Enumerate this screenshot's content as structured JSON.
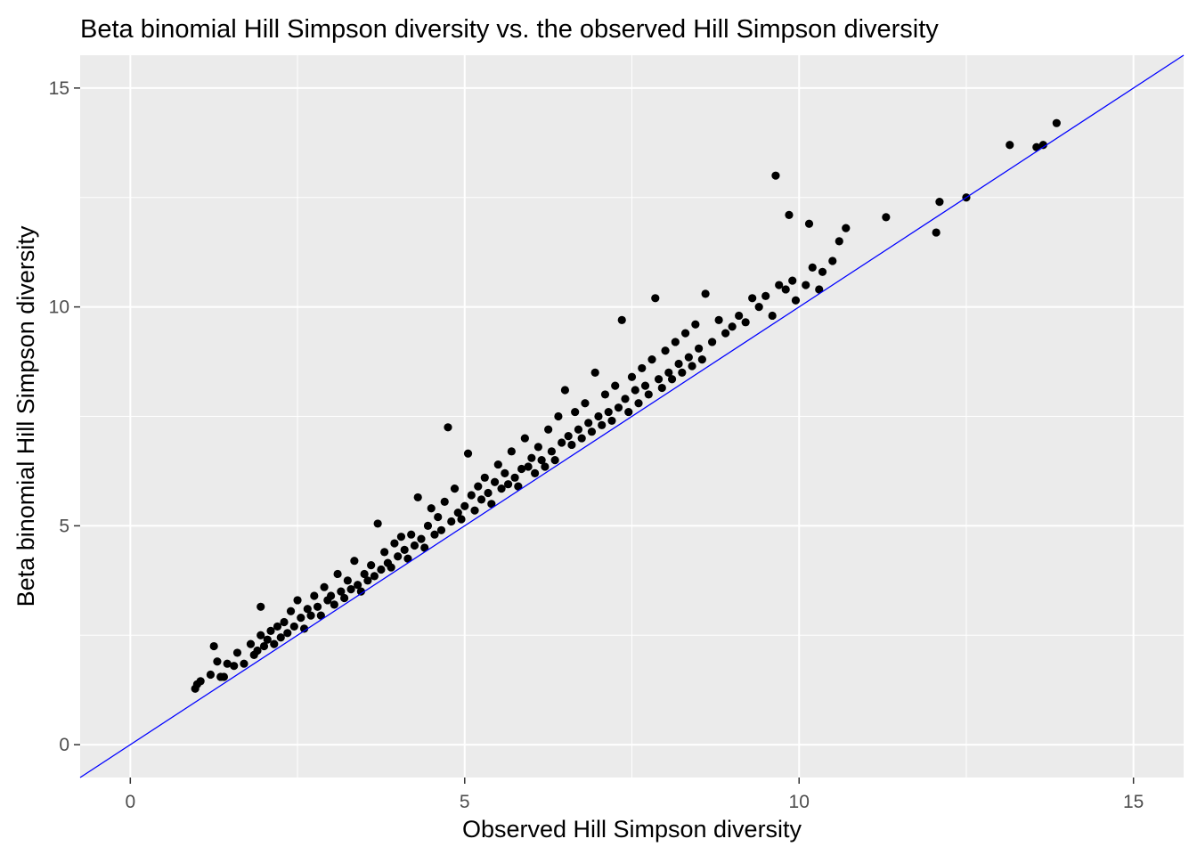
{
  "chart_data": {
    "type": "scatter",
    "title": "Beta binomial Hill Simpson diversity vs. the observed Hill Simpson diversity",
    "xlabel": "Observed Hill Simpson diversity",
    "ylabel": "Beta binomial Hill Simpson diversity",
    "xlim": [
      -0.75,
      15.75
    ],
    "ylim": [
      -0.75,
      15.75
    ],
    "xticks": [
      0,
      5,
      10,
      15
    ],
    "yticks": [
      0,
      5,
      10,
      15
    ],
    "xtick_labels": [
      "0",
      "5",
      "10",
      "15"
    ],
    "ytick_labels": [
      "0",
      "5",
      "10",
      "15"
    ],
    "grid": true,
    "reference_line": {
      "intercept": 0,
      "slope": 1,
      "color": "#0000ff"
    },
    "colors": {
      "panel": "#ebebeb",
      "grid": "#ffffff",
      "points": "#000000",
      "line": "#0000ff",
      "axis_text": "#4d4d4d"
    },
    "points": [
      [
        0.97,
        1.28
      ],
      [
        1.0,
        1.38
      ],
      [
        1.05,
        1.45
      ],
      [
        1.2,
        1.6
      ],
      [
        1.25,
        2.25
      ],
      [
        1.3,
        1.9
      ],
      [
        1.35,
        1.55
      ],
      [
        1.4,
        1.55
      ],
      [
        1.45,
        1.85
      ],
      [
        1.55,
        1.8
      ],
      [
        1.6,
        2.1
      ],
      [
        1.7,
        1.85
      ],
      [
        1.8,
        2.3
      ],
      [
        1.85,
        2.05
      ],
      [
        1.9,
        2.15
      ],
      [
        1.95,
        3.15
      ],
      [
        1.95,
        2.5
      ],
      [
        2.0,
        2.25
      ],
      [
        2.05,
        2.4
      ],
      [
        2.1,
        2.6
      ],
      [
        2.15,
        2.3
      ],
      [
        2.2,
        2.7
      ],
      [
        2.25,
        2.45
      ],
      [
        2.3,
        2.8
      ],
      [
        2.35,
        2.55
      ],
      [
        2.4,
        3.05
      ],
      [
        2.45,
        2.7
      ],
      [
        2.5,
        3.3
      ],
      [
        2.55,
        2.9
      ],
      [
        2.6,
        2.65
      ],
      [
        2.65,
        3.1
      ],
      [
        2.7,
        2.95
      ],
      [
        2.75,
        3.4
      ],
      [
        2.8,
        3.15
      ],
      [
        2.85,
        2.95
      ],
      [
        2.9,
        3.6
      ],
      [
        2.95,
        3.3
      ],
      [
        3.0,
        3.4
      ],
      [
        3.05,
        3.2
      ],
      [
        3.1,
        3.9
      ],
      [
        3.15,
        3.5
      ],
      [
        3.2,
        3.35
      ],
      [
        3.25,
        3.75
      ],
      [
        3.3,
        3.55
      ],
      [
        3.35,
        4.2
      ],
      [
        3.4,
        3.65
      ],
      [
        3.45,
        3.5
      ],
      [
        3.5,
        3.9
      ],
      [
        3.55,
        3.75
      ],
      [
        3.6,
        4.1
      ],
      [
        3.65,
        3.85
      ],
      [
        3.7,
        5.05
      ],
      [
        3.75,
        4.0
      ],
      [
        3.8,
        4.4
      ],
      [
        3.85,
        4.15
      ],
      [
        3.9,
        4.05
      ],
      [
        3.95,
        4.6
      ],
      [
        4.0,
        4.3
      ],
      [
        4.05,
        4.75
      ],
      [
        4.1,
        4.45
      ],
      [
        4.15,
        4.25
      ],
      [
        4.2,
        4.8
      ],
      [
        4.25,
        4.55
      ],
      [
        4.3,
        5.65
      ],
      [
        4.35,
        4.7
      ],
      [
        4.4,
        4.5
      ],
      [
        4.45,
        5.0
      ],
      [
        4.5,
        5.4
      ],
      [
        4.55,
        4.8
      ],
      [
        4.6,
        5.2
      ],
      [
        4.65,
        4.9
      ],
      [
        4.7,
        5.55
      ],
      [
        4.75,
        7.25
      ],
      [
        4.8,
        5.1
      ],
      [
        4.85,
        5.85
      ],
      [
        4.9,
        5.3
      ],
      [
        4.95,
        5.15
      ],
      [
        5.0,
        5.45
      ],
      [
        5.05,
        6.65
      ],
      [
        5.1,
        5.7
      ],
      [
        5.15,
        5.35
      ],
      [
        5.2,
        5.9
      ],
      [
        5.25,
        5.6
      ],
      [
        5.3,
        6.1
      ],
      [
        5.35,
        5.75
      ],
      [
        5.4,
        5.5
      ],
      [
        5.45,
        6.0
      ],
      [
        5.5,
        6.4
      ],
      [
        5.55,
        5.85
      ],
      [
        5.6,
        6.2
      ],
      [
        5.65,
        5.95
      ],
      [
        5.7,
        6.7
      ],
      [
        5.75,
        6.1
      ],
      [
        5.8,
        5.9
      ],
      [
        5.85,
        6.3
      ],
      [
        5.9,
        7.0
      ],
      [
        5.95,
        6.35
      ],
      [
        6.0,
        6.55
      ],
      [
        6.05,
        6.2
      ],
      [
        6.1,
        6.8
      ],
      [
        6.15,
        6.5
      ],
      [
        6.2,
        6.35
      ],
      [
        6.25,
        7.2
      ],
      [
        6.3,
        6.7
      ],
      [
        6.35,
        6.5
      ],
      [
        6.4,
        7.5
      ],
      [
        6.45,
        6.9
      ],
      [
        6.5,
        8.1
      ],
      [
        6.55,
        7.05
      ],
      [
        6.6,
        6.85
      ],
      [
        6.65,
        7.6
      ],
      [
        6.7,
        7.2
      ],
      [
        6.75,
        7.0
      ],
      [
        6.8,
        7.8
      ],
      [
        6.85,
        7.35
      ],
      [
        6.9,
        7.15
      ],
      [
        6.95,
        8.5
      ],
      [
        7.0,
        7.5
      ],
      [
        7.05,
        7.3
      ],
      [
        7.1,
        8.0
      ],
      [
        7.15,
        7.6
      ],
      [
        7.2,
        7.4
      ],
      [
        7.25,
        8.2
      ],
      [
        7.3,
        7.7
      ],
      [
        7.35,
        9.7
      ],
      [
        7.4,
        7.9
      ],
      [
        7.45,
        7.6
      ],
      [
        7.5,
        8.4
      ],
      [
        7.55,
        8.1
      ],
      [
        7.6,
        7.8
      ],
      [
        7.65,
        8.6
      ],
      [
        7.7,
        8.2
      ],
      [
        7.75,
        8.0
      ],
      [
        7.8,
        8.8
      ],
      [
        7.85,
        10.2
      ],
      [
        7.9,
        8.35
      ],
      [
        7.95,
        8.15
      ],
      [
        8.0,
        9.0
      ],
      [
        8.05,
        8.5
      ],
      [
        8.1,
        8.35
      ],
      [
        8.15,
        9.2
      ],
      [
        8.2,
        8.7
      ],
      [
        8.25,
        8.5
      ],
      [
        8.3,
        9.4
      ],
      [
        8.35,
        8.85
      ],
      [
        8.4,
        8.65
      ],
      [
        8.45,
        9.6
      ],
      [
        8.5,
        9.05
      ],
      [
        8.55,
        8.8
      ],
      [
        8.6,
        10.3
      ],
      [
        8.7,
        9.2
      ],
      [
        8.8,
        9.7
      ],
      [
        8.9,
        9.4
      ],
      [
        9.0,
        9.55
      ],
      [
        9.1,
        9.8
      ],
      [
        9.2,
        9.65
      ],
      [
        9.3,
        10.2
      ],
      [
        9.4,
        10.0
      ],
      [
        9.5,
        10.25
      ],
      [
        9.6,
        9.8
      ],
      [
        9.65,
        13.0
      ],
      [
        9.7,
        10.5
      ],
      [
        9.8,
        10.4
      ],
      [
        9.85,
        12.1
      ],
      [
        9.9,
        10.6
      ],
      [
        9.95,
        10.15
      ],
      [
        10.1,
        10.5
      ],
      [
        10.15,
        11.9
      ],
      [
        10.2,
        10.9
      ],
      [
        10.3,
        10.4
      ],
      [
        10.35,
        10.8
      ],
      [
        10.5,
        11.05
      ],
      [
        10.6,
        11.5
      ],
      [
        10.7,
        11.8
      ],
      [
        11.3,
        12.05
      ],
      [
        12.05,
        11.7
      ],
      [
        12.1,
        12.4
      ],
      [
        12.5,
        12.5
      ],
      [
        13.15,
        13.7
      ],
      [
        13.55,
        13.65
      ],
      [
        13.65,
        13.7
      ],
      [
        13.85,
        14.2
      ]
    ]
  }
}
